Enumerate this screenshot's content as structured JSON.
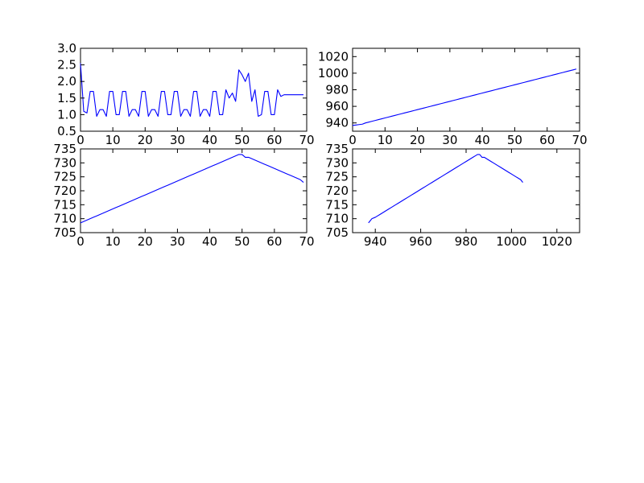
{
  "colors": {
    "series": "#0000ff",
    "background": "#ffffff",
    "axes": "#000000"
  },
  "chart_data": [
    {
      "type": "line",
      "grid": false,
      "xlim": [
        0,
        70
      ],
      "ylim": [
        0.5,
        3.0
      ],
      "xticks": [
        0,
        10,
        20,
        30,
        40,
        50,
        60,
        70
      ],
      "yticks": [
        0.5,
        1.0,
        1.5,
        2.0,
        2.5,
        3.0
      ],
      "xtick_labels": [
        "0",
        "10",
        "20",
        "30",
        "40",
        "50",
        "60",
        "70"
      ],
      "ytick_labels": [
        "0.5",
        "1.0",
        "1.5",
        "2.0",
        "2.5",
        "3.0"
      ],
      "series": [
        {
          "x": [
            0,
            1,
            2,
            3,
            4,
            5,
            6,
            7,
            8,
            9,
            10,
            11,
            12,
            13,
            14,
            15,
            16,
            17,
            18,
            19,
            20,
            21,
            22,
            23,
            24,
            25,
            26,
            27,
            28,
            29,
            30,
            31,
            32,
            33,
            34,
            35,
            36,
            37,
            38,
            39,
            40,
            41,
            42,
            43,
            44,
            45,
            46,
            47,
            48,
            49,
            50,
            51,
            52,
            53,
            54,
            55,
            56,
            57,
            58,
            59,
            60,
            61,
            62,
            63,
            64,
            65,
            66,
            67,
            68,
            69
          ],
          "y": [
            2.55,
            1.1,
            1.05,
            1.7,
            1.7,
            0.95,
            1.15,
            1.15,
            0.95,
            1.7,
            1.7,
            1.0,
            1.0,
            1.7,
            1.7,
            0.95,
            1.15,
            1.15,
            0.95,
            1.7,
            1.7,
            0.95,
            1.15,
            1.15,
            0.95,
            1.7,
            1.7,
            1.0,
            1.0,
            1.7,
            1.7,
            0.95,
            1.15,
            1.15,
            0.95,
            1.7,
            1.7,
            0.95,
            1.15,
            1.15,
            0.95,
            1.7,
            1.7,
            1.0,
            1.0,
            1.75,
            1.5,
            1.65,
            1.4,
            2.35,
            2.2,
            2.0,
            2.25,
            1.4,
            1.75,
            0.95,
            1.0,
            1.7,
            1.7,
            1.0,
            1.0,
            1.75,
            1.55,
            1.6,
            1.6,
            1.6,
            1.6,
            1.6,
            1.6,
            1.6
          ]
        }
      ]
    },
    {
      "type": "line",
      "grid": false,
      "xlim": [
        0,
        70
      ],
      "ylim": [
        930,
        1030
      ],
      "xticks": [
        0,
        10,
        20,
        30,
        40,
        50,
        60,
        70
      ],
      "yticks": [
        940,
        960,
        980,
        1000,
        1020
      ],
      "xtick_labels": [
        "0",
        "10",
        "20",
        "30",
        "40",
        "50",
        "60",
        "70"
      ],
      "ytick_labels": [
        "940",
        "960",
        "980",
        "1000",
        "1020"
      ],
      "series": [
        {
          "x": [
            0,
            1,
            2,
            3,
            4,
            5,
            6,
            7,
            8,
            9,
            10,
            11,
            12,
            13,
            14,
            15,
            16,
            17,
            18,
            19,
            20,
            21,
            22,
            23,
            24,
            25,
            26,
            27,
            28,
            29,
            30,
            31,
            32,
            33,
            34,
            35,
            36,
            37,
            38,
            39,
            40,
            41,
            42,
            43,
            44,
            45,
            46,
            47,
            48,
            49,
            50,
            51,
            52,
            53,
            54,
            55,
            56,
            57,
            58,
            59,
            60,
            61,
            62,
            63,
            64,
            65,
            66,
            67,
            68,
            69
          ],
          "y": [
            937,
            937.5,
            938,
            938.5,
            940,
            941,
            942,
            943,
            944,
            945,
            946,
            947,
            948,
            949,
            950,
            951,
            952,
            953,
            954,
            955,
            956,
            957,
            958,
            959,
            960,
            961,
            962,
            963,
            964,
            965,
            966,
            967,
            968,
            969,
            970,
            971,
            972,
            973,
            974,
            975,
            976,
            977,
            978,
            979,
            980,
            981,
            982,
            983,
            984,
            985,
            986,
            987,
            988,
            989,
            990,
            991,
            992,
            993,
            994,
            995,
            996,
            997,
            998,
            999,
            1000,
            1001,
            1002,
            1003,
            1004,
            1005
          ]
        }
      ]
    },
    {
      "type": "line",
      "grid": false,
      "xlim": [
        0,
        70
      ],
      "ylim": [
        705,
        735
      ],
      "xticks": [
        0,
        10,
        20,
        30,
        40,
        50,
        60,
        70
      ],
      "yticks": [
        705,
        710,
        715,
        720,
        725,
        730,
        735
      ],
      "xtick_labels": [
        "0",
        "10",
        "20",
        "30",
        "40",
        "50",
        "60",
        "70"
      ],
      "ytick_labels": [
        "705",
        "710",
        "715",
        "720",
        "725",
        "730",
        "735"
      ],
      "series": [
        {
          "x": [
            0,
            1,
            2,
            3,
            4,
            5,
            6,
            7,
            8,
            9,
            10,
            11,
            12,
            13,
            14,
            15,
            16,
            17,
            18,
            19,
            20,
            21,
            22,
            23,
            24,
            25,
            26,
            27,
            28,
            29,
            30,
            31,
            32,
            33,
            34,
            35,
            36,
            37,
            38,
            39,
            40,
            41,
            42,
            43,
            44,
            45,
            46,
            47,
            48,
            49,
            50,
            51,
            52,
            53,
            54,
            55,
            56,
            57,
            58,
            59,
            60,
            61,
            62,
            63,
            64,
            65,
            66,
            67,
            68,
            69
          ],
          "y": [
            708.5,
            709,
            709.5,
            710,
            710.5,
            711,
            711.5,
            712,
            712.5,
            713,
            713.5,
            714,
            714.5,
            715,
            715.5,
            716,
            716.5,
            717,
            717.5,
            718,
            718.5,
            719,
            719.5,
            720,
            720.5,
            721,
            721.5,
            722,
            722.5,
            723,
            723.5,
            724,
            724.5,
            725,
            725.5,
            726,
            726.5,
            727,
            727.5,
            728,
            728.5,
            729,
            729.5,
            730,
            730.5,
            731,
            731.5,
            732,
            732.5,
            733,
            733,
            732,
            732,
            731.5,
            731,
            730.5,
            730,
            729.5,
            729,
            728.5,
            728,
            727.5,
            727,
            726.5,
            726,
            725.5,
            725,
            724.5,
            724,
            723
          ]
        }
      ]
    },
    {
      "type": "line",
      "grid": false,
      "xlim": [
        930,
        1030
      ],
      "ylim": [
        705,
        735
      ],
      "xticks": [
        940,
        960,
        980,
        1000,
        1020
      ],
      "yticks": [
        705,
        710,
        715,
        720,
        725,
        730,
        735
      ],
      "xtick_labels": [
        "940",
        "960",
        "980",
        "1000",
        "1020"
      ],
      "ytick_labels": [
        "705",
        "710",
        "715",
        "720",
        "725",
        "730",
        "735"
      ],
      "series": [
        {
          "x": [
            937,
            937.5,
            938,
            938.5,
            940,
            941,
            942,
            943,
            944,
            945,
            946,
            947,
            948,
            949,
            950,
            951,
            952,
            953,
            954,
            955,
            956,
            957,
            958,
            959,
            960,
            961,
            962,
            963,
            964,
            965,
            966,
            967,
            968,
            969,
            970,
            971,
            972,
            973,
            974,
            975,
            976,
            977,
            978,
            979,
            980,
            981,
            982,
            983,
            984,
            985,
            986,
            987,
            988,
            989,
            990,
            991,
            992,
            993,
            994,
            995,
            996,
            997,
            998,
            999,
            1000,
            1001,
            1002,
            1003,
            1004,
            1005
          ],
          "y": [
            708.5,
            709,
            709.5,
            710,
            710.5,
            711,
            711.5,
            712,
            712.5,
            713,
            713.5,
            714,
            714.5,
            715,
            715.5,
            716,
            716.5,
            717,
            717.5,
            718,
            718.5,
            719,
            719.5,
            720,
            720.5,
            721,
            721.5,
            722,
            722.5,
            723,
            723.5,
            724,
            724.5,
            725,
            725.5,
            726,
            726.5,
            727,
            727.5,
            728,
            728.5,
            729,
            729.5,
            730,
            730.5,
            731,
            731.5,
            732,
            732.5,
            733,
            733,
            732,
            732,
            731.5,
            731,
            730.5,
            730,
            729.5,
            729,
            728.5,
            728,
            727.5,
            727,
            726.5,
            726,
            725.5,
            725,
            724.5,
            724,
            723
          ]
        }
      ]
    }
  ]
}
